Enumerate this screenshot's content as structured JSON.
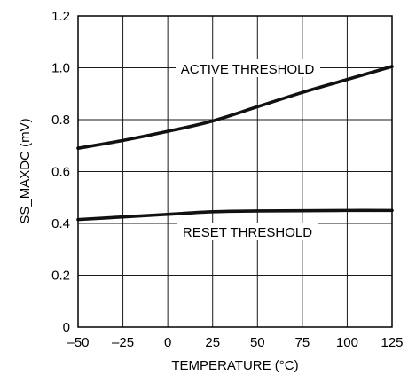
{
  "chart_data": {
    "type": "line",
    "title": "",
    "xlabel": "TEMPERATURE (°C)",
    "ylabel": "SS_MAXDC (mV)",
    "xlim": [
      -50,
      125
    ],
    "ylim": [
      0,
      1.2
    ],
    "xticks": [
      -50,
      -25,
      0,
      25,
      50,
      75,
      100,
      125
    ],
    "xtick_labels": [
      "–50",
      "–25",
      "0",
      "25",
      "50",
      "75",
      "100",
      "125"
    ],
    "yticks": [
      0,
      0.2,
      0.4,
      0.6,
      0.8,
      1.0,
      1.2
    ],
    "ytick_labels": [
      "0",
      "0.2",
      "0.4",
      "0.6",
      "0.8",
      "1.0",
      "1.2"
    ],
    "grid": true,
    "series": [
      {
        "name": "ACTIVE THRESHOLD",
        "x": [
          -50,
          -25,
          0,
          25,
          50,
          75,
          100,
          125
        ],
        "y": [
          0.69,
          0.72,
          0.755,
          0.795,
          0.85,
          0.905,
          0.955,
          1.005
        ]
      },
      {
        "name": "RESET THRESHOLD",
        "x": [
          -50,
          -25,
          0,
          25,
          50,
          75,
          100,
          125
        ],
        "y": [
          0.415,
          0.425,
          0.435,
          0.445,
          0.448,
          0.449,
          0.45,
          0.45
        ]
      }
    ],
    "annotations": [
      {
        "text": "ACTIVE THRESHOLD",
        "series": 0
      },
      {
        "text": "RESET THRESHOLD",
        "series": 1
      }
    ]
  }
}
